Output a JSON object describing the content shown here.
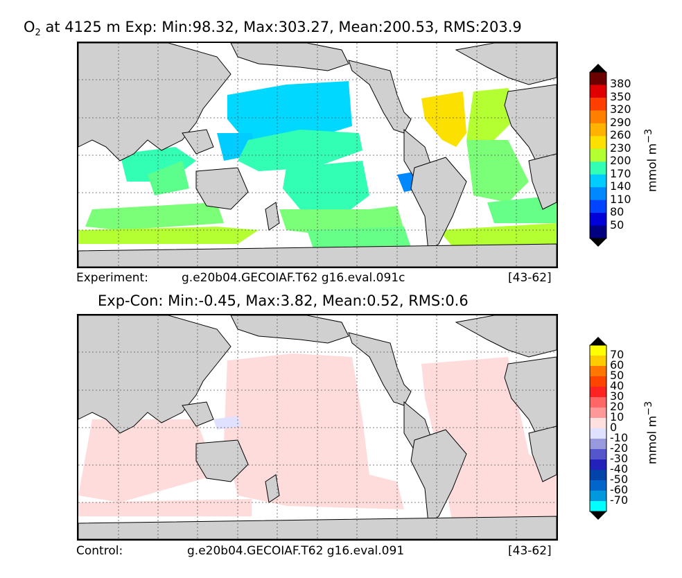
{
  "top": {
    "title_prefix": "O",
    "title_sub": "2",
    "title_rest": " at 4125 m Exp: Min:98.32, Max:303.27, Mean:200.53, RMS:203.9",
    "footer_label": "Experiment:",
    "footer_case": "g.e20b04.GECOIAF.T62 g16.eval.091c",
    "footer_years": "[43-62]",
    "colorbar": {
      "ticks": [
        "380",
        "350",
        "320",
        "290",
        "260",
        "230",
        "200",
        "170",
        "140",
        "110",
        "80",
        "50"
      ],
      "colors": [
        "#6a0000",
        "#e00000",
        "#ff3f00",
        "#ff7f00",
        "#ffb200",
        "#fce000",
        "#b4ff32",
        "#32ffb4",
        "#00ccff",
        "#0088ff",
        "#0044ff",
        "#0000d8",
        "#000080"
      ],
      "unit": "mmol m",
      "unit_sup": "−3"
    }
  },
  "bottom": {
    "title": "Exp-Con: Min:-0.45, Max:3.82, Mean:0.52, RMS:0.6",
    "footer_label": "Control:",
    "footer_case": "g.e20b04.GECOIAF.T62 g16.eval.091",
    "footer_years": "[43-62]",
    "colorbar": {
      "ticks": [
        "70",
        "60",
        "50",
        "40",
        "30",
        "20",
        "10",
        "0",
        "-10",
        "-20",
        "-30",
        "-40",
        "-50",
        "-60",
        "-70"
      ],
      "colors": [
        "#ffff00",
        "#ffcc00",
        "#ff7700",
        "#ff4400",
        "#ff2222",
        "#ff6666",
        "#ff9999",
        "#ffe0e0",
        "#e0e0ff",
        "#9999dd",
        "#5555cc",
        "#2222bb",
        "#0044aa",
        "#0066cc",
        "#0099dd",
        "#00ffff"
      ],
      "unit": "mmol m",
      "unit_sup": "−3"
    }
  }
}
